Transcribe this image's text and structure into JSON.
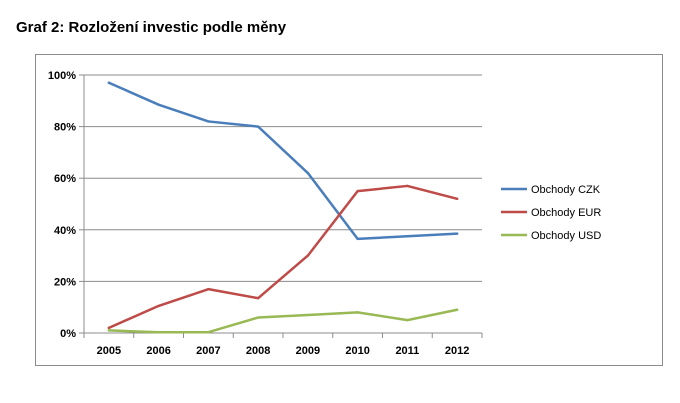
{
  "page": {
    "title": "Graf 2: Rozložení investic podle měny"
  },
  "chart_data": {
    "type": "line",
    "title": "",
    "xlabel": "",
    "ylabel": "",
    "categories": [
      "2005",
      "2006",
      "2007",
      "2008",
      "2009",
      "2010",
      "2011",
      "2012"
    ],
    "y_ticks": [
      "0%",
      "20%",
      "40%",
      "60%",
      "80%",
      "100%"
    ],
    "ylim": [
      0,
      100
    ],
    "grid": true,
    "legend_position": "right",
    "series": [
      {
        "name": "Obchody CZK",
        "color": "#4a7ebb",
        "values": [
          97,
          88.5,
          82,
          80,
          62,
          36.5,
          37.5,
          38.5
        ]
      },
      {
        "name": "Obchody EUR",
        "color": "#be4b48",
        "values": [
          2,
          10.5,
          17,
          13.5,
          30,
          55,
          57,
          52
        ]
      },
      {
        "name": "Obchody USD",
        "color": "#98b954",
        "values": [
          1,
          0.3,
          0.3,
          6,
          7,
          8,
          5,
          9
        ]
      }
    ]
  }
}
